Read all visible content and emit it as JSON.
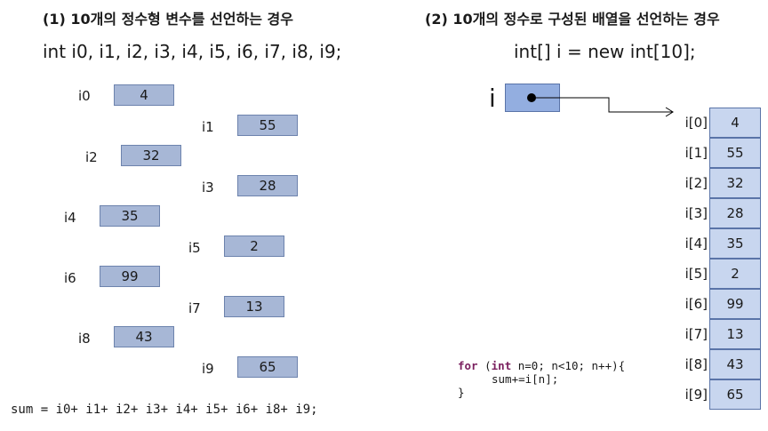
{
  "left": {
    "title": "(1) 10개의 정수형 변수를 선언하는 경우",
    "declaration": "int  i0, i1, i2, i3, i4, i5, i6, i7, i8, i9;",
    "variables": [
      {
        "name": "i0",
        "value": "4"
      },
      {
        "name": "i1",
        "value": "55"
      },
      {
        "name": "i2",
        "value": "32"
      },
      {
        "name": "i3",
        "value": "28"
      },
      {
        "name": "i4",
        "value": "35"
      },
      {
        "name": "i5",
        "value": "2"
      },
      {
        "name": "i6",
        "value": "99"
      },
      {
        "name": "i7",
        "value": "13"
      },
      {
        "name": "i8",
        "value": "43"
      },
      {
        "name": "i9",
        "value": "65"
      }
    ],
    "sum_code": "sum = i0+ i1+ i2+ i3+ i4+ i5+ i6+ i8+ i9;"
  },
  "right": {
    "title": "(2) 10개의 정수로 구성된 배열을 선언하는 경우",
    "declaration": "int[] i = new int[10];",
    "ref_name": "i",
    "array": [
      {
        "index": "i[0]",
        "value": "4"
      },
      {
        "index": "i[1]",
        "value": "55"
      },
      {
        "index": "i[2]",
        "value": "32"
      },
      {
        "index": "i[3]",
        "value": "28"
      },
      {
        "index": "i[4]",
        "value": "35"
      },
      {
        "index": "i[5]",
        "value": "2"
      },
      {
        "index": "i[6]",
        "value": "99"
      },
      {
        "index": "i[7]",
        "value": "13"
      },
      {
        "index": "i[8]",
        "value": "43"
      },
      {
        "index": "i[9]",
        "value": "65"
      }
    ],
    "loop": {
      "kw_for": "for",
      "head_open": " (",
      "kw_int": "int",
      "head_rest": " n=0; n<10; n++){",
      "body": "sum+=i[n];",
      "close": "}"
    }
  },
  "colors": {
    "var_box": "#a7b7d6",
    "ref_box": "#93aee0",
    "array_cell": "#c8d6ef",
    "keyword": "#7a1f5e"
  }
}
